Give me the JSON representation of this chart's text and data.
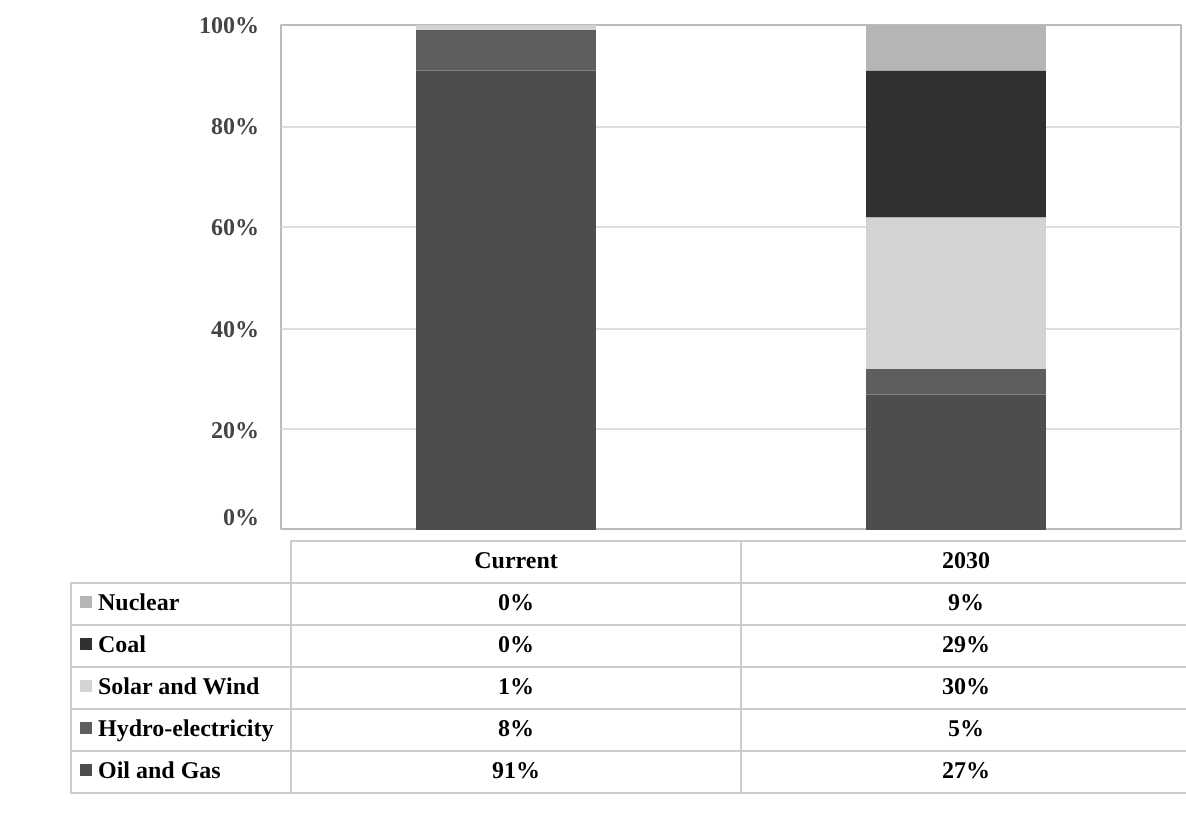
{
  "chart_data": {
    "type": "bar",
    "stacked": true,
    "categories": [
      "Current",
      "2030"
    ],
    "series": [
      {
        "name": "Oil and Gas",
        "color": "#4d4d4f",
        "values": [
          91,
          27
        ],
        "value_labels": [
          "91%",
          "27%"
        ]
      },
      {
        "name": "Hydro-electricity",
        "color": "#5e5e60",
        "values": [
          8,
          5
        ],
        "value_labels": [
          "8%",
          "5%"
        ]
      },
      {
        "name": "Solar and Wind",
        "color": "#d3d3d5",
        "values": [
          1,
          30
        ],
        "value_labels": [
          "1%",
          "30%"
        ]
      },
      {
        "name": "Coal",
        "color": "#303030",
        "values": [
          0,
          29
        ],
        "value_labels": [
          "0%",
          "29%"
        ]
      },
      {
        "name": "Nuclear",
        "color": "#b5b5b8",
        "values": [
          0,
          9
        ],
        "value_labels": [
          "0%",
          "9%"
        ]
      }
    ],
    "ylim": [
      0,
      100
    ],
    "yticks": [
      {
        "value": 0,
        "label": "0%"
      },
      {
        "value": 20,
        "label": "20%"
      },
      {
        "value": 40,
        "label": "40%"
      },
      {
        "value": 60,
        "label": "60%"
      },
      {
        "value": 80,
        "label": "80%"
      },
      {
        "value": 100,
        "label": "100%"
      }
    ],
    "grid": "y",
    "legend": "bottom"
  }
}
